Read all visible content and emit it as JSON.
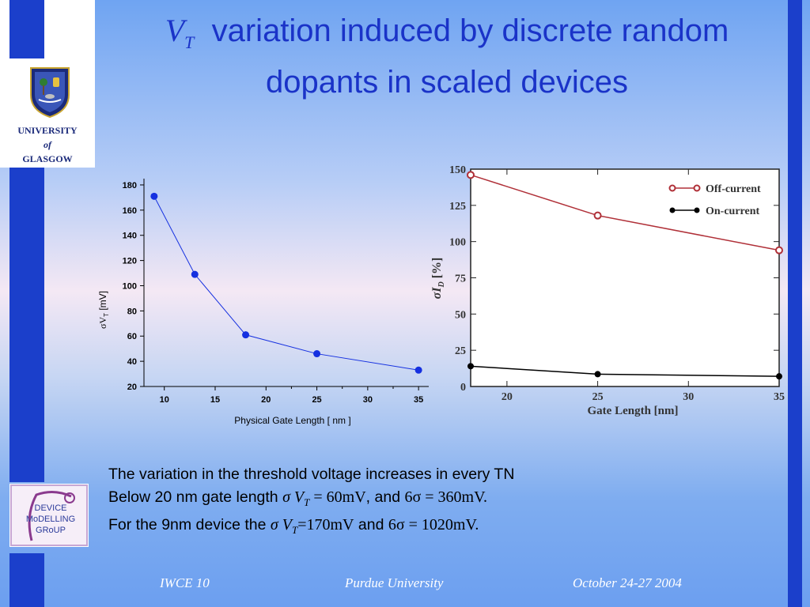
{
  "title": {
    "symbol": "V",
    "symbol_sub": "T",
    "line1_rest": "variation induced by discrete random",
    "line2": "dopants in scaled devices"
  },
  "university": {
    "line1": "UNIVERSITY",
    "line2": "of",
    "line3": "GLASGOW"
  },
  "group_logo": {
    "line1": "DEVICE",
    "line2": "MoDELLING",
    "line3": "GRoUP"
  },
  "body": {
    "line1": "The variation in the threshold voltage increases in every TN",
    "line2_a": "Below 20 nm gate length ",
    "line2_sigma": "σ V",
    "line2_sub": "T",
    "line2_eq": " = 60mV",
    "line2_b": ", and ",
    "line2_c": "6σ  = 360mV",
    "line2_d": ".",
    "line3_a": "For the 9nm device the ",
    "line3_sigma": "σ V",
    "line3_sub": "T",
    "line3_eq": "=170mV",
    "line3_b": " and ",
    "line3_c": "6σ = 1020mV",
    "line3_d": "."
  },
  "footer": {
    "left": "IWCE 10",
    "center": "Purdue University",
    "right": "October 24-27 2004"
  },
  "colors": {
    "accent": "#1b3fcb",
    "title": "#1a33c8",
    "series_left": "#1530e0",
    "series_off": "#b03038",
    "series_on": "#000000"
  },
  "chart_data": [
    {
      "type": "line",
      "xlabel": "Physical Gate Length [ nm ]",
      "ylabel": "σV",
      "ylabel_sub": "T",
      "ylabel_unit": " [mV]",
      "xlim": [
        8,
        36
      ],
      "ylim": [
        20,
        185
      ],
      "xticks": [
        10,
        15,
        20,
        25,
        30,
        35
      ],
      "yticks": [
        20,
        40,
        60,
        80,
        100,
        120,
        140,
        160,
        180
      ],
      "series": [
        {
          "x": [
            9,
            13,
            18,
            25,
            35
          ],
          "values": [
            171,
            109,
            61,
            46,
            33
          ]
        }
      ]
    },
    {
      "type": "line",
      "xlabel": "Gate Length [nm]",
      "ylabel": "σI",
      "ylabel_sub": "D",
      "ylabel_unit": " [%]",
      "xlim": [
        18,
        35
      ],
      "ylim": [
        0,
        150
      ],
      "xticks": [
        20,
        25,
        30,
        35
      ],
      "yticks": [
        0,
        25,
        50,
        75,
        100,
        125,
        150
      ],
      "legend_position": "top-right",
      "series": [
        {
          "name": "Off-current",
          "x": [
            18,
            25,
            35
          ],
          "values": [
            146,
            118,
            94
          ]
        },
        {
          "name": "On-current",
          "x": [
            18,
            25,
            35
          ],
          "values": [
            14,
            8.5,
            7
          ]
        }
      ]
    }
  ]
}
